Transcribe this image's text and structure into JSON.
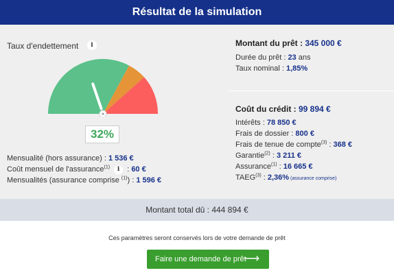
{
  "header": {
    "title": "Résultat de la simulation"
  },
  "debt": {
    "label": "Taux d'endettement",
    "info_icon": "i",
    "percent_text": "32%",
    "percent_value": 32,
    "colors": {
      "green": "#5bc08a",
      "orange": "#e59437",
      "red": "#fc5e5d"
    }
  },
  "monthly": {
    "mensualite_label": "Mensualité (hors assurance) : ",
    "mensualite_value": "1 536 €",
    "cout_label": "Coût mensuel de l'assurance",
    "cout_sup": "(1)",
    "cout_sep": " : ",
    "cout_value": "60 €",
    "total_label": "Mensualités (assurance comprise ",
    "total_sup": "(1)",
    "total_sep": ") : ",
    "total_value": "1 596 €"
  },
  "loan": {
    "title_label": "Montant du prêt : ",
    "title_value": "345 000 €",
    "duree_label": "Durée du prêt : ",
    "duree_value": "23",
    "duree_unit": " ans",
    "taux_label": "Taux nominal : ",
    "taux_value": "1,85%"
  },
  "credit": {
    "title_label": "Coût du crédit : ",
    "title_value": "99 894 €",
    "interets_label": "Intérêts : ",
    "interets_value": "78 850 €",
    "frais_label": "Frais de dossier : ",
    "frais_value": "800 €",
    "tenue_label": "Frais de tenue de compte",
    "tenue_sup": "(3)",
    "tenue_sep": " : ",
    "tenue_value": "368 €",
    "garantie_label": "Garantie",
    "garantie_sup": "(2)",
    "garantie_sep": " : ",
    "garantie_value": "3 211 €",
    "assurance_label": "Assurance",
    "assurance_sup": "(1)",
    "assurance_sep": " : ",
    "assurance_value": "16 665 €",
    "taeg_label": "TAEG",
    "taeg_sup": "(3)",
    "taeg_sep": " : ",
    "taeg_value": "2,36%",
    "taeg_note": " (assurance comprise)"
  },
  "total": {
    "text": "Montant total dû : 444 894 €"
  },
  "footer": {
    "note": "Ces paramètres seront conservés lors de votre demande de prêt",
    "cta_label": "Faire une demande de prêt",
    "cta_arrow": "⟶"
  }
}
